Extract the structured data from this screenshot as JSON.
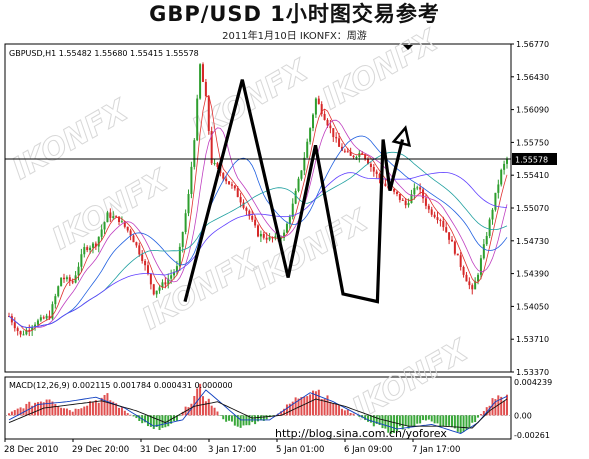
{
  "title": "GBP/USD  1小时图交易参考",
  "subtitle": "2011年1月10日    IKONFX：周游",
  "watermark": "IKONFX",
  "colors": {
    "bull": "#2e9e2e",
    "bear": "#d62828",
    "hist_pos": "#e05050",
    "hist_neg": "#3aa83a",
    "bg": "#ffffff",
    "price_line": "#000000",
    "watermark": "#d8d8d8"
  },
  "chart_data": [
    {
      "type": "candlestick",
      "header": "GBPUSD,H1  1.55482 1.55680 1.55415 1.55578",
      "ylim": [
        1.5337,
        1.5677
      ],
      "y_ticks": [
        "1.56770",
        "1.56430",
        "1.56090",
        "1.55750",
        "1.55410",
        "1.55070",
        "1.54730",
        "1.54390",
        "1.54050",
        "1.53710",
        "1.53370"
      ],
      "x_ticks": [
        "28 Dec 2010",
        "29 Dec 20:00",
        "31 Dec 04:00",
        "3 Jan 17:00",
        "5 Jan 01:00",
        "6 Jan 09:00",
        "7 Jan 17:00"
      ],
      "current_price": "1.55578",
      "price_path": [
        [
          0,
          1.5395
        ],
        [
          4,
          1.5375
        ],
        [
          9,
          1.5388
        ],
        [
          14,
          1.5395
        ],
        [
          18,
          1.5435
        ],
        [
          22,
          1.543
        ],
        [
          26,
          1.5465
        ],
        [
          30,
          1.547
        ],
        [
          34,
          1.55
        ],
        [
          38,
          1.5495
        ],
        [
          42,
          1.548
        ],
        [
          46,
          1.5455
        ],
        [
          50,
          1.542
        ],
        [
          54,
          1.543
        ],
        [
          58,
          1.5445
        ],
        [
          62,
          1.552
        ],
        [
          64,
          1.558
        ],
        [
          66,
          1.5655
        ],
        [
          68,
          1.562
        ],
        [
          70,
          1.5555
        ],
        [
          74,
          1.554
        ],
        [
          78,
          1.5525
        ],
        [
          82,
          1.5505
        ],
        [
          86,
          1.548
        ],
        [
          90,
          1.5475
        ],
        [
          92,
          1.5475
        ],
        [
          95,
          1.548
        ],
        [
          98,
          1.551
        ],
        [
          102,
          1.556
        ],
        [
          106,
          1.562
        ],
        [
          110,
          1.5595
        ],
        [
          114,
          1.557
        ],
        [
          118,
          1.556
        ],
        [
          122,
          1.5565
        ],
        [
          126,
          1.5545
        ],
        [
          130,
          1.553
        ],
        [
          134,
          1.552
        ],
        [
          137,
          1.551
        ],
        [
          141,
          1.553
        ],
        [
          145,
          1.5505
        ],
        [
          149,
          1.5495
        ],
        [
          153,
          1.547
        ],
        [
          157,
          1.544
        ],
        [
          160,
          1.542
        ],
        [
          162,
          1.544
        ],
        [
          165,
          1.548
        ],
        [
          168,
          1.552
        ],
        [
          170,
          1.5545
        ],
        [
          172,
          1.5558
        ]
      ],
      "trend_annotation": [
        [
          0.0,
          1.541
        ],
        [
          0.25,
          1.564
        ],
        [
          0.45,
          1.5435
        ],
        [
          0.57,
          1.5572
        ],
        [
          0.69,
          1.5418
        ],
        [
          0.84,
          1.541
        ],
        [
          0.865,
          1.5578
        ],
        [
          0.895,
          1.5525
        ],
        [
          0.95,
          1.5578
        ]
      ]
    },
    {
      "type": "histogram",
      "header": "MACD(12,26,9) 0.002115 0.001784 0.000431 0.000000",
      "ylim": [
        -0.00261,
        0.00423
      ],
      "y_ticks": [
        "0.004239",
        "0.00",
        "-0.00261"
      ],
      "hist_path": [
        [
          0,
          0.0002
        ],
        [
          5,
          0.001
        ],
        [
          10,
          0.0015
        ],
        [
          14,
          0.002
        ],
        [
          18,
          0.001
        ],
        [
          22,
          0.0005
        ],
        [
          28,
          0.0015
        ],
        [
          34,
          0.002
        ],
        [
          40,
          0.0005
        ],
        [
          46,
          -0.0008
        ],
        [
          52,
          -0.0015
        ],
        [
          58,
          -0.0005
        ],
        [
          62,
          0.0012
        ],
        [
          66,
          0.0028
        ],
        [
          70,
          0.0012
        ],
        [
          74,
          -0.0005
        ],
        [
          80,
          -0.0012
        ],
        [
          86,
          -0.0008
        ],
        [
          92,
          0.0
        ],
        [
          96,
          0.001
        ],
        [
          102,
          0.0025
        ],
        [
          106,
          0.003
        ],
        [
          110,
          0.0018
        ],
        [
          114,
          0.001
        ],
        [
          120,
          0.0
        ],
        [
          126,
          -0.001
        ],
        [
          132,
          -0.0018
        ],
        [
          138,
          -0.0012
        ],
        [
          144,
          -0.0005
        ],
        [
          150,
          -0.0012
        ],
        [
          156,
          -0.0018
        ],
        [
          160,
          -0.001
        ],
        [
          164,
          0.0005
        ],
        [
          168,
          0.002
        ],
        [
          172,
          0.002
        ]
      ],
      "main_path": [
        [
          0,
          -0.0005
        ],
        [
          10,
          0.0012
        ],
        [
          20,
          0.0015
        ],
        [
          30,
          0.002
        ],
        [
          40,
          0.0008
        ],
        [
          50,
          -0.0012
        ],
        [
          60,
          -0.0005
        ],
        [
          68,
          0.0028
        ],
        [
          80,
          -0.0005
        ],
        [
          90,
          -0.0005
        ],
        [
          104,
          0.0025
        ],
        [
          112,
          0.0015
        ],
        [
          124,
          -0.0005
        ],
        [
          134,
          -0.0015
        ],
        [
          146,
          -0.001
        ],
        [
          156,
          -0.002
        ],
        [
          162,
          -0.0008
        ],
        [
          168,
          0.0015
        ],
        [
          172,
          0.0021
        ]
      ],
      "signal_path": [
        [
          0,
          -0.0008
        ],
        [
          12,
          0.0008
        ],
        [
          22,
          0.0012
        ],
        [
          32,
          0.0016
        ],
        [
          44,
          0.0005
        ],
        [
          54,
          -0.0008
        ],
        [
          64,
          0.001
        ],
        [
          72,
          0.0015
        ],
        [
          84,
          -0.0003
        ],
        [
          94,
          0.0
        ],
        [
          106,
          0.0018
        ],
        [
          116,
          0.001
        ],
        [
          128,
          -0.0004
        ],
        [
          138,
          -0.0012
        ],
        [
          150,
          -0.0012
        ],
        [
          160,
          -0.0014
        ],
        [
          166,
          0.0005
        ],
        [
          172,
          0.0018
        ]
      ],
      "url": "http://blog.sina.com.cn/yoforex"
    }
  ]
}
